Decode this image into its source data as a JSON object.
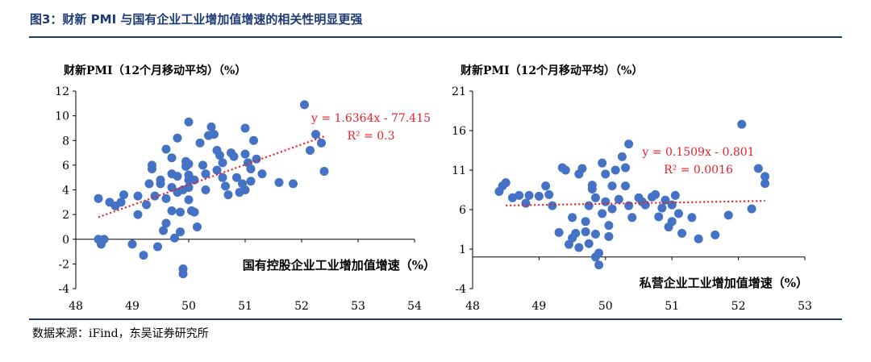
{
  "figure": {
    "title": "图3：财新 PMI 与国有企业工业增加值增速的相关性明显更强",
    "source": "数据来源：iFind，东吴证券研究所"
  },
  "colors": {
    "point": "#4472c4",
    "trend": "#e8202a",
    "title": "#1f3b73"
  },
  "chart_data": [
    {
      "type": "scatter",
      "ylabel": "财新PMI（12个月移动平均）（%）",
      "xlabel": "国有控股企业工业增加值增速（%）",
      "xlim": [
        48,
        54
      ],
      "ylim": [
        -4,
        12
      ],
      "xticks": [
        48,
        49,
        50,
        51,
        52,
        53,
        54
      ],
      "yticks": [
        -4,
        -2,
        0,
        2,
        4,
        6,
        8,
        10,
        12
      ],
      "equation": "y = 1.6364x - 77.415",
      "r2": "R² = 0.3",
      "trend": {
        "slope": 1.6364,
        "intercept": -77.415,
        "x_range": [
          48.4,
          52.4
        ]
      },
      "points": [
        [
          48.4,
          3.3
        ],
        [
          48.4,
          0.0
        ],
        [
          48.45,
          -0.4
        ],
        [
          48.5,
          0.0
        ],
        [
          48.6,
          3.0
        ],
        [
          48.7,
          2.7
        ],
        [
          48.8,
          3.0
        ],
        [
          48.85,
          3.6
        ],
        [
          49.0,
          -0.4
        ],
        [
          49.1,
          2.0
        ],
        [
          49.1,
          3.5
        ],
        [
          49.2,
          -1.3
        ],
        [
          49.25,
          2.8
        ],
        [
          49.3,
          4.5
        ],
        [
          49.35,
          6.0
        ],
        [
          49.35,
          5.7
        ],
        [
          49.4,
          3.5
        ],
        [
          49.45,
          -0.6
        ],
        [
          49.5,
          4.5
        ],
        [
          49.5,
          4.8
        ],
        [
          49.55,
          0.7
        ],
        [
          49.6,
          7.3
        ],
        [
          49.6,
          3.3
        ],
        [
          49.7,
          6.6
        ],
        [
          49.7,
          5.3
        ],
        [
          49.7,
          4.2
        ],
        [
          49.7,
          2.3
        ],
        [
          49.75,
          0.1
        ],
        [
          49.8,
          8.2
        ],
        [
          49.8,
          5.1
        ],
        [
          49.8,
          3.8
        ],
        [
          49.85,
          2.2
        ],
        [
          49.85,
          0.6
        ],
        [
          49.9,
          -2.4
        ],
        [
          49.9,
          -2.8
        ],
        [
          49.95,
          6.3
        ],
        [
          49.95,
          5.9
        ],
        [
          50.0,
          9.5
        ],
        [
          50.0,
          6.1
        ],
        [
          50.0,
          5.2
        ],
        [
          50.0,
          4.8
        ],
        [
          50.0,
          4.2
        ],
        [
          50.05,
          2.3
        ],
        [
          50.1,
          4.8
        ],
        [
          50.1,
          2.2
        ],
        [
          50.15,
          1.0
        ],
        [
          50.2,
          7.8
        ],
        [
          50.25,
          6.0
        ],
        [
          50.3,
          5.3
        ],
        [
          50.3,
          4.0
        ],
        [
          50.35,
          8.4
        ],
        [
          50.4,
          9.1
        ],
        [
          50.45,
          8.5
        ],
        [
          50.5,
          7.2
        ],
        [
          50.55,
          6.8
        ],
        [
          50.6,
          6.2
        ],
        [
          50.6,
          5.0
        ],
        [
          50.65,
          4.3
        ],
        [
          50.7,
          3.6
        ],
        [
          50.75,
          7.0
        ],
        [
          50.8,
          6.7
        ],
        [
          50.85,
          5.0
        ],
        [
          50.9,
          3.8
        ],
        [
          50.95,
          4.5
        ],
        [
          51.0,
          9.0
        ],
        [
          51.0,
          6.9
        ],
        [
          51.05,
          6.2
        ],
        [
          51.1,
          5.7
        ],
        [
          51.1,
          4.7
        ],
        [
          51.15,
          8.0
        ],
        [
          51.2,
          6.5
        ],
        [
          51.3,
          5.3
        ],
        [
          51.6,
          4.6
        ],
        [
          51.85,
          4.5
        ],
        [
          52.05,
          10.9
        ],
        [
          52.15,
          7.2
        ],
        [
          52.25,
          8.5
        ],
        [
          52.35,
          7.8
        ],
        [
          52.4,
          5.5
        ],
        [
          51.0,
          4.0
        ],
        [
          50.0,
          3.2
        ],
        [
          49.9,
          4.0
        ],
        [
          50.5,
          5.6
        ],
        [
          49.6,
          1.3
        ]
      ]
    },
    {
      "type": "scatter",
      "ylabel": "财新PMI（12个月移动平均）（%）",
      "xlabel": "私营企业工业增加值增速（%）",
      "xlim": [
        48,
        53
      ],
      "ylim": [
        -4,
        21
      ],
      "xticks": [
        48,
        49,
        50,
        51,
        52,
        53
      ],
      "yticks": [
        -4,
        1,
        6,
        11,
        16,
        21
      ],
      "equation": "y = 0.1509x - 0.801",
      "r2": "R² = 0.0016",
      "trend": {
        "slope": 0.1509,
        "intercept": -0.801,
        "x_range": [
          48.5,
          52.4
        ]
      },
      "points": [
        [
          48.4,
          8.3
        ],
        [
          48.45,
          9.0
        ],
        [
          48.5,
          9.4
        ],
        [
          48.6,
          7.5
        ],
        [
          48.7,
          7.8
        ],
        [
          48.8,
          6.8
        ],
        [
          48.85,
          7.8
        ],
        [
          49.0,
          7.7
        ],
        [
          49.1,
          9.0
        ],
        [
          49.15,
          7.9
        ],
        [
          49.2,
          6.5
        ],
        [
          49.3,
          3.1
        ],
        [
          49.35,
          11.3
        ],
        [
          49.4,
          11.0
        ],
        [
          49.45,
          1.6
        ],
        [
          49.5,
          2.4
        ],
        [
          49.55,
          3.0
        ],
        [
          49.6,
          10.5
        ],
        [
          49.65,
          11.2
        ],
        [
          49.7,
          3.2
        ],
        [
          49.75,
          1.7
        ],
        [
          49.75,
          6.5
        ],
        [
          49.8,
          9.1
        ],
        [
          49.8,
          8.6
        ],
        [
          49.85,
          2.9
        ],
        [
          49.85,
          7.5
        ],
        [
          49.9,
          0.5
        ],
        [
          49.9,
          -1.0
        ],
        [
          49.95,
          11.9
        ],
        [
          50.0,
          10.5
        ],
        [
          50.0,
          7.0
        ],
        [
          50.05,
          4.0
        ],
        [
          50.1,
          6.1
        ],
        [
          50.1,
          9.0
        ],
        [
          50.15,
          11.0
        ],
        [
          50.2,
          7.3
        ],
        [
          50.25,
          12.7
        ],
        [
          50.3,
          11.3
        ],
        [
          50.35,
          14.3
        ],
        [
          50.3,
          9.0
        ],
        [
          50.35,
          6.5
        ],
        [
          50.4,
          5.0
        ],
        [
          50.5,
          7.5
        ],
        [
          50.55,
          7.0
        ],
        [
          50.6,
          6.6
        ],
        [
          50.7,
          7.6
        ],
        [
          50.75,
          7.9
        ],
        [
          50.8,
          5.1
        ],
        [
          50.85,
          6.2
        ],
        [
          50.9,
          7.2
        ],
        [
          50.95,
          3.8
        ],
        [
          51.0,
          4.5
        ],
        [
          51.0,
          6.6
        ],
        [
          51.05,
          7.8
        ],
        [
          51.1,
          5.5
        ],
        [
          51.15,
          3.0
        ],
        [
          51.3,
          5.0
        ],
        [
          51.4,
          2.3
        ],
        [
          51.65,
          2.8
        ],
        [
          51.85,
          5.3
        ],
        [
          52.05,
          16.8
        ],
        [
          52.2,
          6.1
        ],
        [
          52.3,
          11.2
        ],
        [
          52.4,
          10.2
        ],
        [
          52.4,
          9.3
        ],
        [
          49.5,
          5.0
        ],
        [
          49.6,
          1.2
        ],
        [
          49.7,
          4.5
        ],
        [
          49.95,
          5.5
        ],
        [
          50.05,
          2.6
        ],
        [
          49.85,
          0.0
        ]
      ]
    }
  ]
}
